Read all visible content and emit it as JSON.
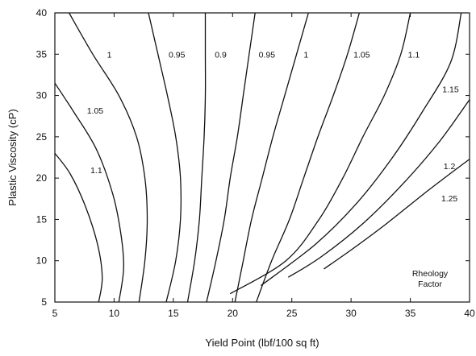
{
  "chart_data": {
    "type": "line",
    "title": "",
    "xlabel": "Yield Point (lbf/100 sq ft)",
    "ylabel": "Plastic Viscosity (cP)",
    "xlim": [
      5,
      40
    ],
    "ylim": [
      5,
      40
    ],
    "xticks": [
      5,
      10,
      15,
      20,
      25,
      30,
      35,
      40
    ],
    "yticks": [
      5,
      10,
      15,
      20,
      25,
      30,
      35,
      40
    ],
    "grid": false,
    "annotation": [
      "Rheology",
      "Factor"
    ],
    "series": [
      {
        "name": "1.1",
        "label_at": [
          8.5,
          21
        ],
        "points": [
          [
            5,
            23
          ],
          [
            6.3,
            20.5
          ],
          [
            7.6,
            16.5
          ],
          [
            8.6,
            12
          ],
          [
            9.0,
            8
          ],
          [
            8.7,
            5
          ]
        ]
      },
      {
        "name": "1.05",
        "label_at": [
          8.4,
          28.2
        ],
        "points": [
          [
            5,
            31.5
          ],
          [
            6.6,
            28
          ],
          [
            8.5,
            23.5
          ],
          [
            9.9,
            18
          ],
          [
            10.6,
            13
          ],
          [
            10.8,
            9
          ],
          [
            10.4,
            5
          ]
        ]
      },
      {
        "name": "1",
        "label_at": [
          9.6,
          35
        ],
        "points": [
          [
            6.2,
            40
          ],
          [
            8.2,
            35
          ],
          [
            10.4,
            30
          ],
          [
            11.9,
            25
          ],
          [
            12.6,
            20
          ],
          [
            12.8,
            15
          ],
          [
            12.6,
            10
          ],
          [
            12.1,
            5
          ]
        ]
      },
      {
        "name": "0.95",
        "label_at": [
          15.3,
          35
        ],
        "points": [
          [
            12.9,
            40
          ],
          [
            13.7,
            35
          ],
          [
            14.5,
            30
          ],
          [
            15.2,
            25
          ],
          [
            15.6,
            20
          ],
          [
            15.6,
            15
          ],
          [
            15.2,
            10
          ],
          [
            14.4,
            5
          ]
        ]
      },
      {
        "name": "0.9",
        "label_at": [
          19.0,
          35
        ],
        "points": [
          [
            17.7,
            40
          ],
          [
            17.7,
            35
          ],
          [
            17.7,
            30
          ],
          [
            17.6,
            25
          ],
          [
            17.4,
            20
          ],
          [
            17.2,
            15
          ],
          [
            16.8,
            10
          ],
          [
            16.2,
            5
          ]
        ]
      },
      {
        "name": "0.95",
        "label_at": [
          22.9,
          35
        ],
        "points": [
          [
            21.9,
            40
          ],
          [
            21.4,
            35
          ],
          [
            20.9,
            30
          ],
          [
            20.4,
            25
          ],
          [
            19.8,
            20
          ],
          [
            19.3,
            15
          ],
          [
            18.6,
            10
          ],
          [
            17.8,
            5
          ]
        ]
      },
      {
        "name": "1",
        "label_at": [
          26.2,
          35
        ],
        "points": [
          [
            26.4,
            40
          ],
          [
            25.4,
            35
          ],
          [
            24.4,
            30
          ],
          [
            23.4,
            25
          ],
          [
            22.5,
            20
          ],
          [
            21.6,
            15
          ],
          [
            20.9,
            10
          ],
          [
            20.2,
            5
          ]
        ]
      },
      {
        "name": "1.05",
        "label_at": [
          30.9,
          35
        ],
        "points": [
          [
            30.7,
            40
          ],
          [
            29.7,
            35
          ],
          [
            28.5,
            30
          ],
          [
            27.2,
            25
          ],
          [
            26.0,
            20
          ],
          [
            24.8,
            15
          ],
          [
            23.3,
            10
          ],
          [
            22.0,
            5
          ]
        ]
      },
      {
        "name": "1.1",
        "label_at": [
          35.3,
          35
        ],
        "points": [
          [
            35.0,
            40
          ],
          [
            34.2,
            35
          ],
          [
            32.8,
            30
          ],
          [
            31.0,
            25
          ],
          [
            29.3,
            20
          ],
          [
            27.3,
            15
          ],
          [
            24.5,
            10
          ],
          [
            19.8,
            6
          ]
        ]
      },
      {
        "name": "1.15",
        "label_at": [
          38.4,
          30.8
        ],
        "points": [
          [
            39.3,
            40
          ],
          [
            38.4,
            34
          ],
          [
            36.0,
            28
          ],
          [
            33.5,
            22.5
          ],
          [
            30.5,
            17
          ],
          [
            27.0,
            12
          ],
          [
            22.4,
            7
          ]
        ]
      },
      {
        "name": "1.2",
        "label_at": [
          38.3,
          21.5
        ],
        "points": [
          [
            40,
            29.5
          ],
          [
            37.5,
            24.5
          ],
          [
            34.5,
            19.5
          ],
          [
            31.0,
            14.5
          ],
          [
            27.5,
            10.5
          ],
          [
            24.7,
            8
          ]
        ]
      },
      {
        "name": "1.25",
        "label_at": [
          38.3,
          17.6
        ],
        "points": [
          [
            40,
            22.3
          ],
          [
            36.5,
            18.5
          ],
          [
            33.0,
            14.5
          ],
          [
            30.0,
            11.3
          ],
          [
            27.7,
            9
          ]
        ]
      }
    ]
  }
}
